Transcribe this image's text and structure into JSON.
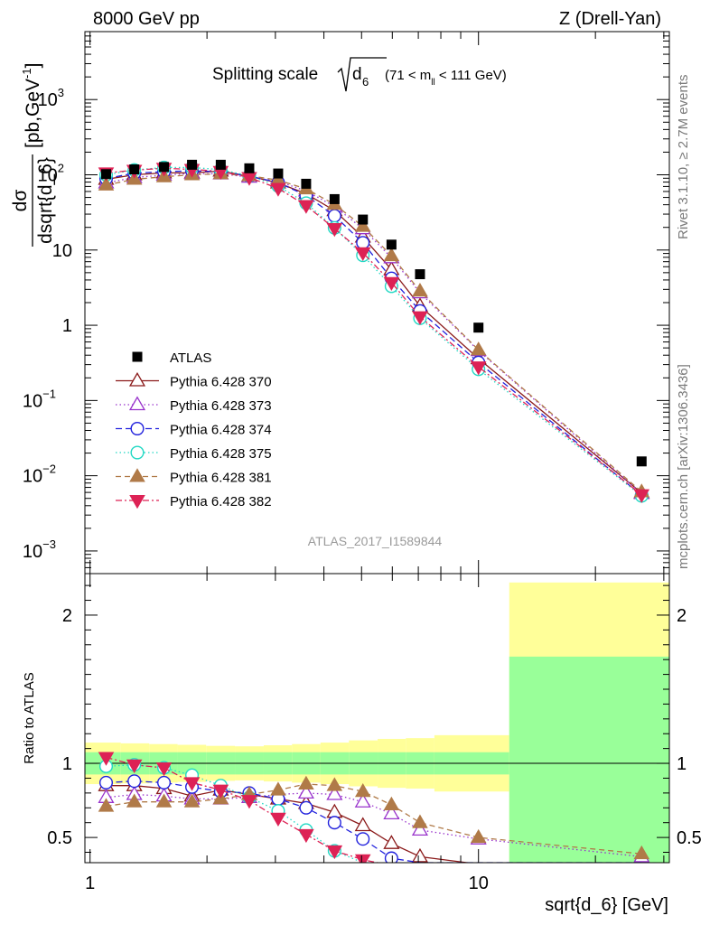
{
  "header": {
    "left": "8000 GeV pp",
    "right": "Z (Drell-Yan)"
  },
  "side_labels": {
    "rivet": "Rivet 3.1.10, ≥ 2.7M events",
    "mcplots": "mcplots.cern.ch [arXiv:1306.3436]"
  },
  "title": {
    "main": "Splitting scale",
    "symbol": "d",
    "subscript": "6",
    "range_pre": "(71 < m",
    "range_sub": "ll",
    "range_post": " < 111 GeV)"
  },
  "y_axis_label": {
    "numerator": "dσ",
    "denominator": "dsqrt{d_6}",
    "unit": "[pb,GeV",
    "unit_exp": "-1",
    "unit_close": "]"
  },
  "ratio_axis_label": "Ratio to ATLAS",
  "x_axis_label": "sqrt{d_6} [GeV]",
  "watermark": "ATLAS_2017_I1589844",
  "colors": {
    "data": "#000000",
    "band_outer": "#ffff99",
    "band_inner": "#99ff99"
  },
  "chart_data": [
    {
      "type": "line",
      "panel": "main",
      "xscale": "log",
      "yscale": "log",
      "xlim": [
        0.97,
        31
      ],
      "ylim": [
        0.0005,
        8000
      ],
      "x_ticks": [
        {
          "value": 1,
          "label": "1"
        },
        {
          "value": 10,
          "label": "10"
        }
      ],
      "y_ticks": [
        {
          "value": 0.001,
          "base": "10",
          "exp": "−3"
        },
        {
          "value": 0.01,
          "base": "10",
          "exp": "−2"
        },
        {
          "value": 0.1,
          "base": "10",
          "exp": "−1"
        },
        {
          "value": 1,
          "base": "1",
          "exp": ""
        },
        {
          "value": 10,
          "base": "10",
          "exp": ""
        },
        {
          "value": 100,
          "base": "10",
          "exp": "2"
        },
        {
          "value": 1000,
          "base": "10",
          "exp": "3"
        }
      ],
      "legend_position": "middle-left",
      "x": [
        1.1,
        1.3,
        1.55,
        1.83,
        2.17,
        2.57,
        3.05,
        3.6,
        4.26,
        5.04,
        5.97,
        7.07,
        10.0,
        26.3
      ],
      "data": {
        "name": "ATLAS",
        "values": [
          102,
          118,
          127,
          136,
          136,
          122,
          104,
          76,
          47.5,
          25.4,
          11.8,
          4.77,
          0.93,
          0.0155
        ],
        "color": "#000000"
      },
      "series": [
        {
          "name": "Pythia 6.428 370",
          "color": "#8b1a1a",
          "marker": "triangle-open",
          "dash": "",
          "values": [
            87,
            100,
            106,
            106,
            112,
            96,
            78,
            56,
            33.5,
            14.9,
            5.5,
            1.8,
            0.36,
            0.0059
          ]
        },
        {
          "name": "Pythia 6.428 373",
          "color": "#9933cc",
          "marker": "triangle-open",
          "dash": "1.5,3",
          "values": [
            78,
            92,
            99,
            104,
            103,
            93,
            82,
            61,
            38,
            19.2,
            7.9,
            2.7,
            0.46,
            0.0058
          ]
        },
        {
          "name": "Pythia 6.428 374",
          "color": "#2222dd",
          "marker": "circle-open",
          "dash": "7,4",
          "values": [
            89,
            105,
            110,
            113,
            110,
            96,
            79,
            53,
            28.5,
            12.5,
            4.2,
            1.55,
            0.32,
            0.0055
          ]
        },
        {
          "name": "Pythia 6.428 375",
          "color": "#22d8c4",
          "marker": "circle-open",
          "dash": "1.5,3",
          "values": [
            100,
            116,
            125,
            125,
            117,
            97,
            71,
            42,
            19.7,
            8.5,
            3.3,
            1.24,
            0.26,
            0.0054
          ]
        },
        {
          "name": "Pythia 6.428 381",
          "color": "#b07a48",
          "marker": "triangle-filled",
          "dash": "6,4",
          "values": [
            73,
            87,
            94,
            100,
            103,
            97,
            85,
            65,
            40.5,
            20.6,
            8.4,
            2.85,
            0.47,
            0.0061
          ]
        },
        {
          "name": "Pythia 6.428 382",
          "color": "#dd2255",
          "marker": "triangle-down-filled",
          "dash": "7,3,2,3",
          "values": [
            106,
            115,
            122,
            118,
            111,
            92,
            66,
            39,
            19.3,
            9.2,
            3.7,
            1.3,
            0.28,
            0.0056
          ]
        }
      ]
    },
    {
      "type": "line",
      "panel": "ratio",
      "xscale": "log",
      "yscale": "linear",
      "xlim": [
        0.97,
        31
      ],
      "ylim": [
        0.33,
        2.28
      ],
      "y_ticks": [
        {
          "value": 0.5,
          "label": "0.5"
        },
        {
          "value": 1,
          "label": "1"
        },
        {
          "value": 2,
          "label": "2"
        }
      ],
      "x_ticks": [
        {
          "value": 1,
          "label": "1"
        },
        {
          "value": 10,
          "label": "10"
        }
      ],
      "bins": [
        {
          "lo": 0.97,
          "hi": 1.2,
          "band_outer": 0.14,
          "band_inner": 0.075
        },
        {
          "lo": 1.2,
          "hi": 1.42,
          "band_outer": 0.135,
          "band_inner": 0.075
        },
        {
          "lo": 1.42,
          "hi": 1.68,
          "band_outer": 0.13,
          "band_inner": 0.075
        },
        {
          "lo": 1.68,
          "hi": 1.99,
          "band_outer": 0.125,
          "band_inner": 0.075
        },
        {
          "lo": 1.99,
          "hi": 2.36,
          "band_outer": 0.118,
          "band_inner": 0.075
        },
        {
          "lo": 2.36,
          "hi": 2.8,
          "band_outer": 0.115,
          "band_inner": 0.075
        },
        {
          "lo": 2.8,
          "hi": 3.31,
          "band_outer": 0.122,
          "band_inner": 0.075
        },
        {
          "lo": 3.31,
          "hi": 3.92,
          "band_outer": 0.13,
          "band_inner": 0.075
        },
        {
          "lo": 3.92,
          "hi": 4.64,
          "band_outer": 0.14,
          "band_inner": 0.075
        },
        {
          "lo": 4.64,
          "hi": 5.5,
          "band_outer": 0.155,
          "band_inner": 0.075
        },
        {
          "lo": 5.5,
          "hi": 6.5,
          "band_outer": 0.165,
          "band_inner": 0.075
        },
        {
          "lo": 6.5,
          "hi": 7.7,
          "band_outer": 0.17,
          "band_inner": 0.075
        },
        {
          "lo": 7.7,
          "hi": 12.0,
          "band_outer": 0.19,
          "band_inner": 0.075
        },
        {
          "lo": 12.0,
          "hi": 31,
          "band_outer": 1.22,
          "band_inner": 0.72
        }
      ],
      "x": [
        1.1,
        1.3,
        1.55,
        1.83,
        2.17,
        2.57,
        3.05,
        3.6,
        4.26,
        5.04,
        5.97,
        7.07,
        10.0,
        26.3
      ],
      "series": [
        {
          "name": "Pythia 6.428 370",
          "values": [
            0.85,
            0.85,
            0.83,
            0.78,
            0.82,
            0.79,
            0.76,
            0.73,
            0.67,
            0.58,
            0.46,
            0.37,
            0.32,
            0.3
          ]
        },
        {
          "name": "Pythia 6.428 373",
          "values": [
            0.77,
            0.79,
            0.78,
            0.76,
            0.76,
            0.77,
            0.79,
            0.8,
            0.79,
            0.74,
            0.66,
            0.55,
            0.49,
            0.37
          ]
        },
        {
          "name": "Pythia 6.428 374",
          "values": [
            0.87,
            0.88,
            0.87,
            0.84,
            0.81,
            0.8,
            0.76,
            0.7,
            0.6,
            0.49,
            0.36,
            0.33,
            0.33,
            0.33
          ]
        },
        {
          "name": "Pythia 6.428 375",
          "values": [
            0.98,
            0.99,
            0.97,
            0.92,
            0.85,
            0.77,
            0.68,
            0.55,
            0.41,
            0.33,
            0.3,
            0.3,
            0.3,
            0.3
          ]
        },
        {
          "name": "Pythia 6.428 381",
          "values": [
            0.71,
            0.74,
            0.74,
            0.74,
            0.76,
            0.79,
            0.82,
            0.86,
            0.85,
            0.81,
            0.72,
            0.6,
            0.5,
            0.39
          ]
        },
        {
          "name": "Pythia 6.428 382",
          "values": [
            1.04,
            0.99,
            0.97,
            0.87,
            0.82,
            0.75,
            0.63,
            0.52,
            0.41,
            0.35,
            0.31,
            0.31,
            0.31,
            0.31
          ]
        }
      ]
    }
  ]
}
